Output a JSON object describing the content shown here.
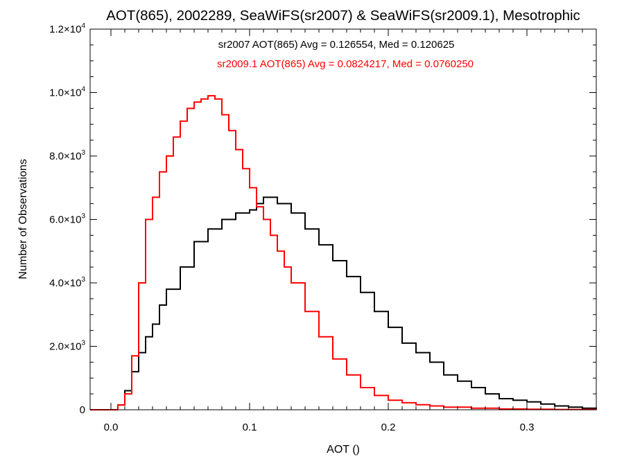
{
  "chart_data": {
    "type": "line",
    "title": "AOT(865), 2002289, SeaWiFS(sr2007) & SeaWiFS(sr2009.1), Mesotrophic",
    "xlabel": "AOT ()",
    "ylabel": "Number of Observations",
    "xlim": [
      -0.015,
      0.35
    ],
    "ylim": [
      0,
      12000
    ],
    "x_ticks": [
      {
        "value": 0.0,
        "label": "0.0"
      },
      {
        "value": 0.1,
        "label": "0.1"
      },
      {
        "value": 0.2,
        "label": "0.2"
      },
      {
        "value": 0.3,
        "label": "0.3"
      }
    ],
    "y_ticks": [
      {
        "value": 0,
        "label": "0"
      },
      {
        "value": 2000,
        "label": "2.0×10",
        "exp": "3"
      },
      {
        "value": 4000,
        "label": "4.0×10",
        "exp": "3"
      },
      {
        "value": 6000,
        "label": "6.0×10",
        "exp": "3"
      },
      {
        "value": 8000,
        "label": "8.0×10",
        "exp": "3"
      },
      {
        "value": 10000,
        "label": "1.0×10",
        "exp": "4"
      },
      {
        "value": 12000,
        "label": "1.2×10",
        "exp": "4"
      }
    ],
    "style": "step",
    "grid": false,
    "annotations": [
      {
        "text": "sr2007 AOT(865) Avg = 0.126554, Med = 0.120625",
        "color": "#000000"
      },
      {
        "text": "sr2009.1 AOT(865) Avg = 0.0824217, Med = 0.0760250",
        "color": "#ff0000"
      }
    ],
    "series": [
      {
        "color": "#000000",
        "x": [
          -0.015,
          0.0,
          0.005,
          0.01,
          0.015,
          0.02,
          0.025,
          0.03,
          0.035,
          0.04,
          0.05,
          0.06,
          0.07,
          0.08,
          0.09,
          0.1,
          0.105,
          0.11,
          0.12,
          0.13,
          0.14,
          0.15,
          0.16,
          0.17,
          0.18,
          0.19,
          0.2,
          0.21,
          0.22,
          0.23,
          0.24,
          0.25,
          0.26,
          0.27,
          0.28,
          0.29,
          0.3,
          0.31,
          0.32,
          0.33,
          0.34,
          0.35
        ],
        "y": [
          0,
          0,
          150,
          600,
          1200,
          1800,
          2300,
          2700,
          3300,
          3800,
          4500,
          5300,
          5700,
          6000,
          6200,
          6300,
          6500,
          6700,
          6500,
          6200,
          5700,
          5200,
          4700,
          4200,
          3700,
          3100,
          2600,
          2100,
          1800,
          1500,
          1100,
          900,
          700,
          500,
          350,
          300,
          250,
          180,
          120,
          80,
          50,
          30
        ]
      },
      {
        "color": "#ff0000",
        "x": [
          -0.015,
          0.0,
          0.005,
          0.01,
          0.015,
          0.02,
          0.025,
          0.03,
          0.035,
          0.04,
          0.045,
          0.05,
          0.055,
          0.06,
          0.065,
          0.07,
          0.075,
          0.08,
          0.085,
          0.09,
          0.095,
          0.1,
          0.105,
          0.11,
          0.115,
          0.12,
          0.125,
          0.13,
          0.14,
          0.15,
          0.16,
          0.17,
          0.18,
          0.19,
          0.2,
          0.21,
          0.22,
          0.23,
          0.24,
          0.26,
          0.28,
          0.3,
          0.32,
          0.35
        ],
        "y": [
          0,
          0,
          150,
          500,
          1700,
          4000,
          6000,
          6700,
          7500,
          8000,
          8600,
          9100,
          9500,
          9700,
          9800,
          9900,
          9800,
          9300,
          8800,
          8200,
          7600,
          7000,
          6400,
          6000,
          5500,
          5000,
          4500,
          4000,
          3100,
          2300,
          1600,
          1100,
          700,
          450,
          300,
          220,
          160,
          120,
          80,
          50,
          25,
          15,
          8,
          0
        ]
      }
    ]
  }
}
